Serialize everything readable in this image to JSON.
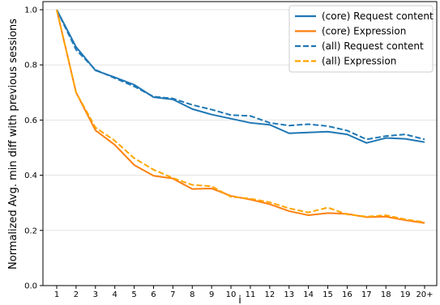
{
  "chart_data": {
    "type": "line",
    "xlabel": "i",
    "ylabel": "Normalized Avg. min diff with previous sessions",
    "ylim": [
      0.0,
      1.0
    ],
    "yticks": [
      "0.0",
      "0.2",
      "0.4",
      "0.6",
      "0.8",
      "1.0"
    ],
    "categories": [
      "1",
      "2",
      "3",
      "4",
      "5",
      "6",
      "7",
      "8",
      "9",
      "10",
      "11",
      "12",
      "13",
      "14",
      "15",
      "16",
      "17",
      "18",
      "19",
      "20+"
    ],
    "grid": "horizontal",
    "legend_position": "top-right",
    "series": [
      {
        "name": "(core) Request content",
        "color": "#1f77b4",
        "dash": "solid",
        "values": [
          1.0,
          0.865,
          0.78,
          0.755,
          0.728,
          0.683,
          0.675,
          0.64,
          0.62,
          0.605,
          0.59,
          0.583,
          0.552,
          0.555,
          0.558,
          0.548,
          0.517,
          0.535,
          0.532,
          0.52
        ]
      },
      {
        "name": "(core) Expression",
        "color": "#ff7f0e",
        "dash": "solid",
        "values": [
          1.0,
          0.7,
          0.563,
          0.51,
          0.437,
          0.398,
          0.388,
          0.35,
          0.352,
          0.325,
          0.312,
          0.295,
          0.27,
          0.255,
          0.263,
          0.26,
          0.248,
          0.25,
          0.237,
          0.227
        ]
      },
      {
        "name": "(all) Request content",
        "color": "#1f77b4",
        "dash": "dashed",
        "values": [
          1.0,
          0.855,
          0.782,
          0.752,
          0.722,
          0.685,
          0.678,
          0.655,
          0.638,
          0.618,
          0.615,
          0.59,
          0.58,
          0.585,
          0.578,
          0.562,
          0.53,
          0.542,
          0.548,
          0.53
        ]
      },
      {
        "name": "(all) Expression",
        "color": "#ffa500",
        "dash": "dashed",
        "values": [
          1.0,
          0.7,
          0.573,
          0.525,
          0.462,
          0.42,
          0.39,
          0.365,
          0.36,
          0.322,
          0.315,
          0.302,
          0.28,
          0.265,
          0.283,
          0.258,
          0.25,
          0.255,
          0.24,
          0.23
        ]
      }
    ]
  }
}
